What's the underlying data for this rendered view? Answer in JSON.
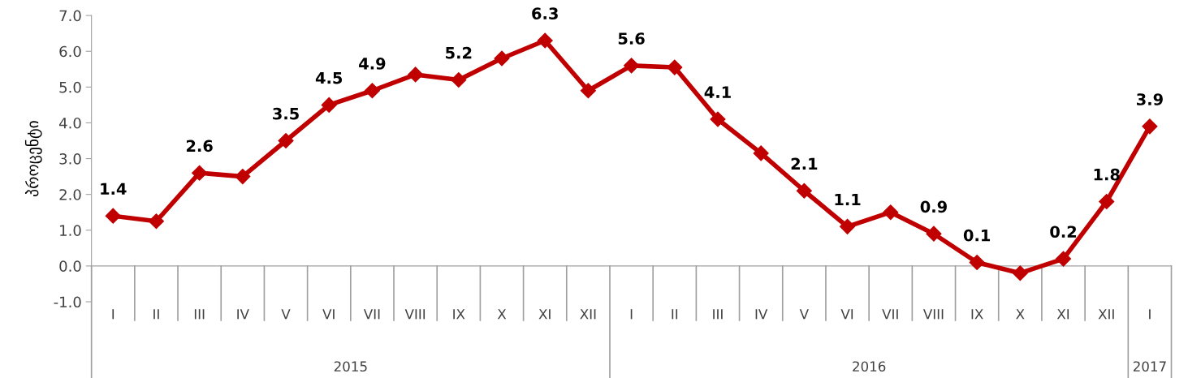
{
  "chart_data": {
    "type": "line",
    "ylabel": "პროცენტი",
    "categories": [
      "I",
      "II",
      "III",
      "IV",
      "V",
      "VI",
      "VII",
      "VIII",
      "IX",
      "X",
      "XI",
      "XII",
      "I",
      "II",
      "III",
      "IV",
      "V",
      "VI",
      "VII",
      "VIII",
      "IX",
      "X",
      "XI",
      "XII",
      "I"
    ],
    "series": [
      {
        "color": "#c00000",
        "values": [
          1.4,
          1.25,
          2.6,
          2.5,
          3.5,
          4.5,
          4.9,
          5.35,
          5.2,
          5.8,
          6.3,
          4.9,
          5.6,
          5.55,
          4.1,
          3.15,
          2.1,
          1.1,
          1.5,
          0.9,
          0.1,
          -0.2,
          0.2,
          1.8,
          3.9
        ],
        "value_labels": [
          "1.4",
          null,
          "2.6",
          null,
          "3.5",
          "4.5",
          "4.9",
          null,
          "5.2",
          null,
          "6.3",
          null,
          "5.6",
          null,
          "4.1",
          null,
          "2.1",
          "1.1",
          null,
          "0.9",
          "0.1",
          null,
          "0.2",
          "1.8",
          "3.9"
        ]
      }
    ],
    "annotations": [
      "2015",
      "2016",
      "2017"
    ],
    "ylim": [
      -1,
      7
    ],
    "yticks": [
      {
        "value": -1,
        "label": "-1.0"
      },
      {
        "value": 0,
        "label": "0.0"
      },
      {
        "value": 1,
        "label": "1.0"
      },
      {
        "value": 2,
        "label": "2.0"
      },
      {
        "value": 3,
        "label": "3.0"
      },
      {
        "value": 4,
        "label": "4.0"
      },
      {
        "value": 5,
        "label": "5.0"
      },
      {
        "value": 6,
        "label": "6.0"
      },
      {
        "value": 7,
        "label": "7.0"
      }
    ],
    "marker": "diamond",
    "line_style": "solid"
  }
}
